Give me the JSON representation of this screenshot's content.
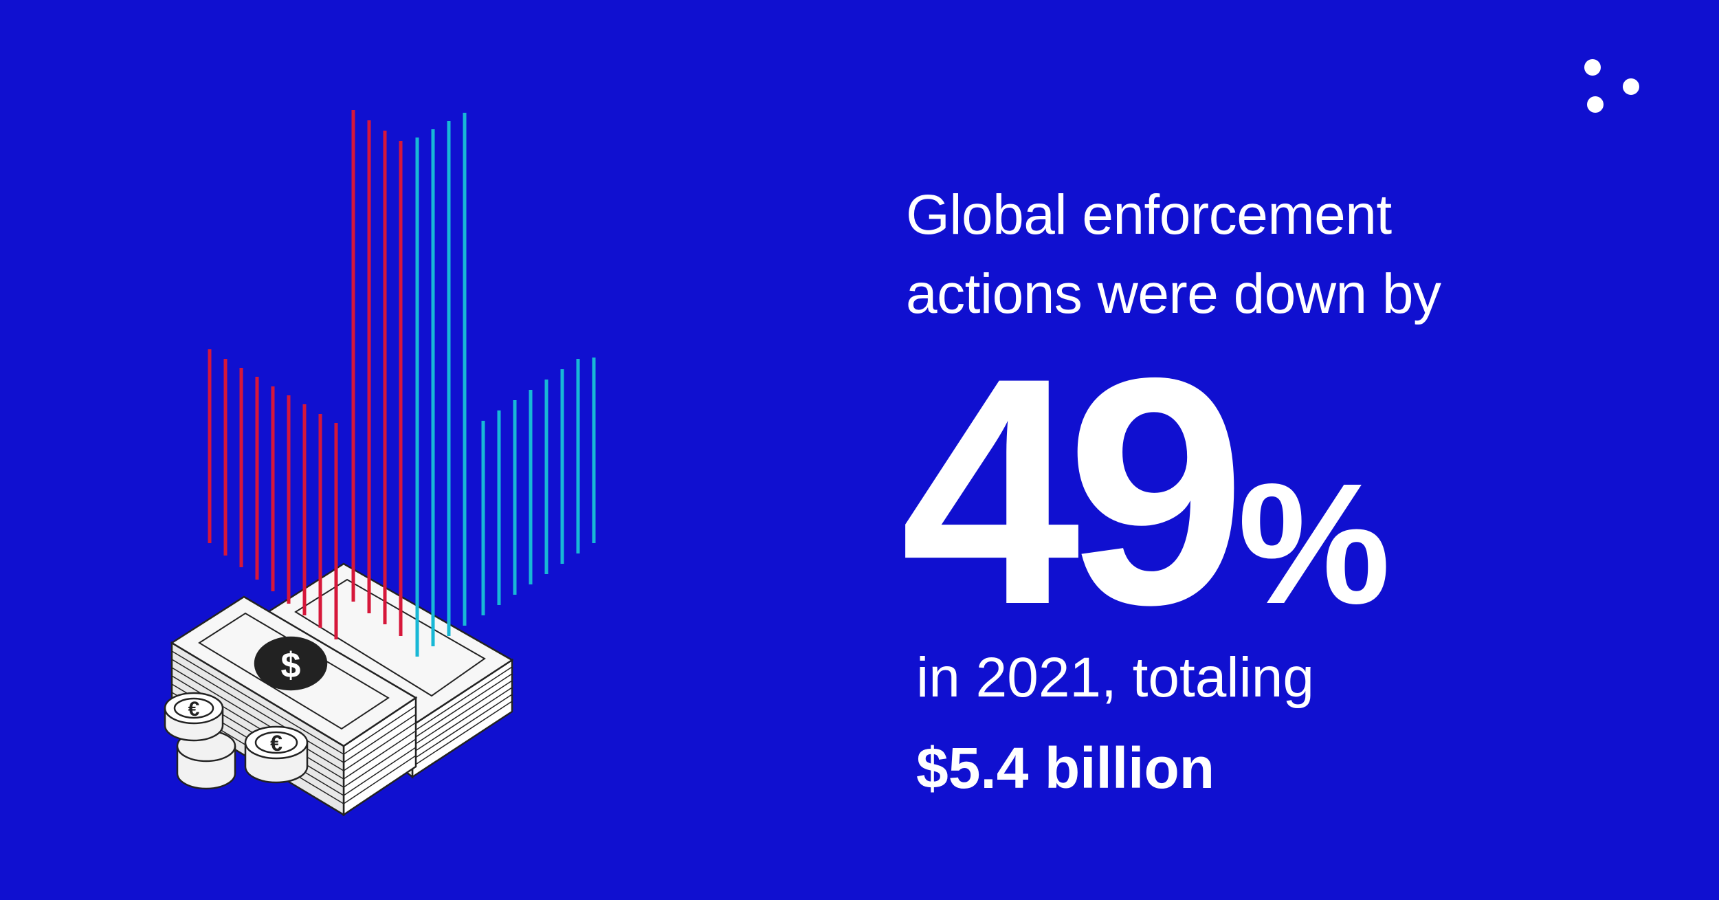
{
  "colors": {
    "background": "#1010d0",
    "text": "#ffffff",
    "bar_red": "#d6173a",
    "bar_cyan": "#18b8d6"
  },
  "icons": {
    "logo": "three-dots-logo-icon",
    "illustration": "money-stack-and-coins-icon",
    "dollar_symbol": "dollar-sign-icon",
    "coin_symbol": "euro-sign-icon"
  },
  "headline": {
    "line1": "Global enforcement",
    "line2": "actions were down by"
  },
  "statistic": {
    "number": "49",
    "percent_sign": "%"
  },
  "subtext": {
    "line1": "in 2021, totaling",
    "amount": "$5.4 billion"
  },
  "illustration": {
    "dollar_symbol": "$",
    "coin_symbol": "€"
  }
}
